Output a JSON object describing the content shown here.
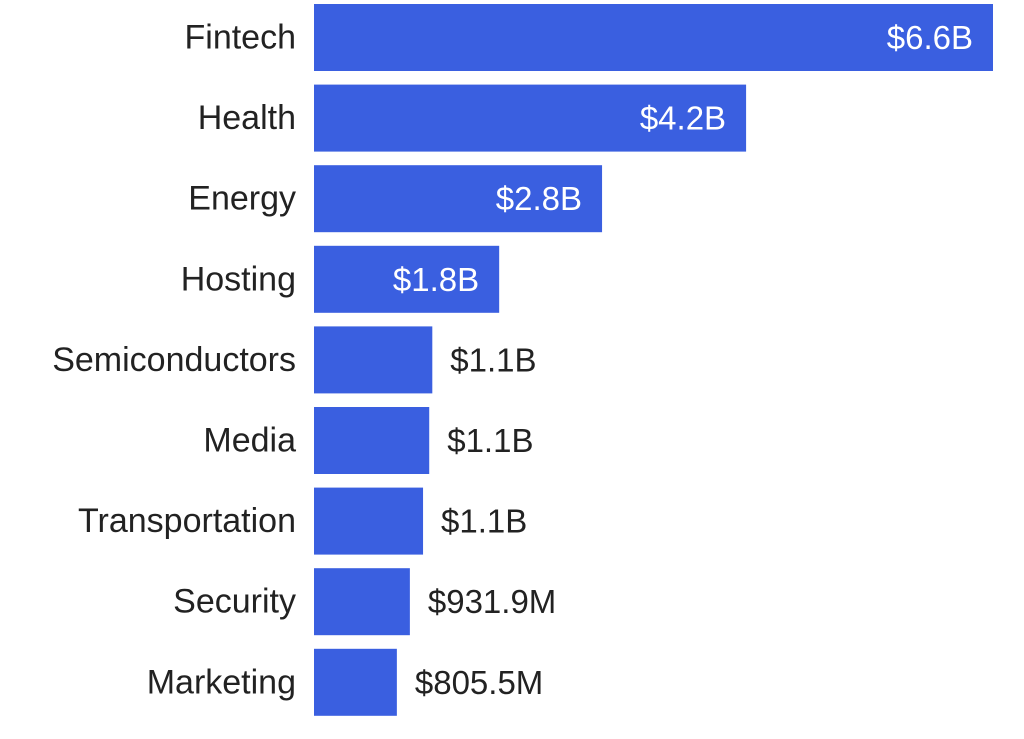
{
  "chart_data": {
    "type": "bar",
    "orientation": "horizontal",
    "title": "",
    "xlabel": "",
    "ylabel": "",
    "categories": [
      "Fintech",
      "Health",
      "Energy",
      "Hosting",
      "Semiconductors",
      "Media",
      "Transportation",
      "Security",
      "Marketing"
    ],
    "values": [
      6.6,
      4.2,
      2.8,
      1.8,
      1.15,
      1.12,
      1.06,
      0.9319,
      0.8055
    ],
    "value_unit": "billion USD",
    "value_labels": [
      "$6.6B",
      "$4.2B",
      "$2.8B",
      "$1.8B",
      "$1.1B",
      "$1.1B",
      "$1.1B",
      "$931.9M",
      "$805.5M"
    ],
    "xlim": [
      0,
      6.6
    ],
    "grid": false,
    "legend": "none",
    "bar_color": "#3a5fe0",
    "label_inside_color": "#ffffff",
    "label_outside_color": "#222222"
  }
}
